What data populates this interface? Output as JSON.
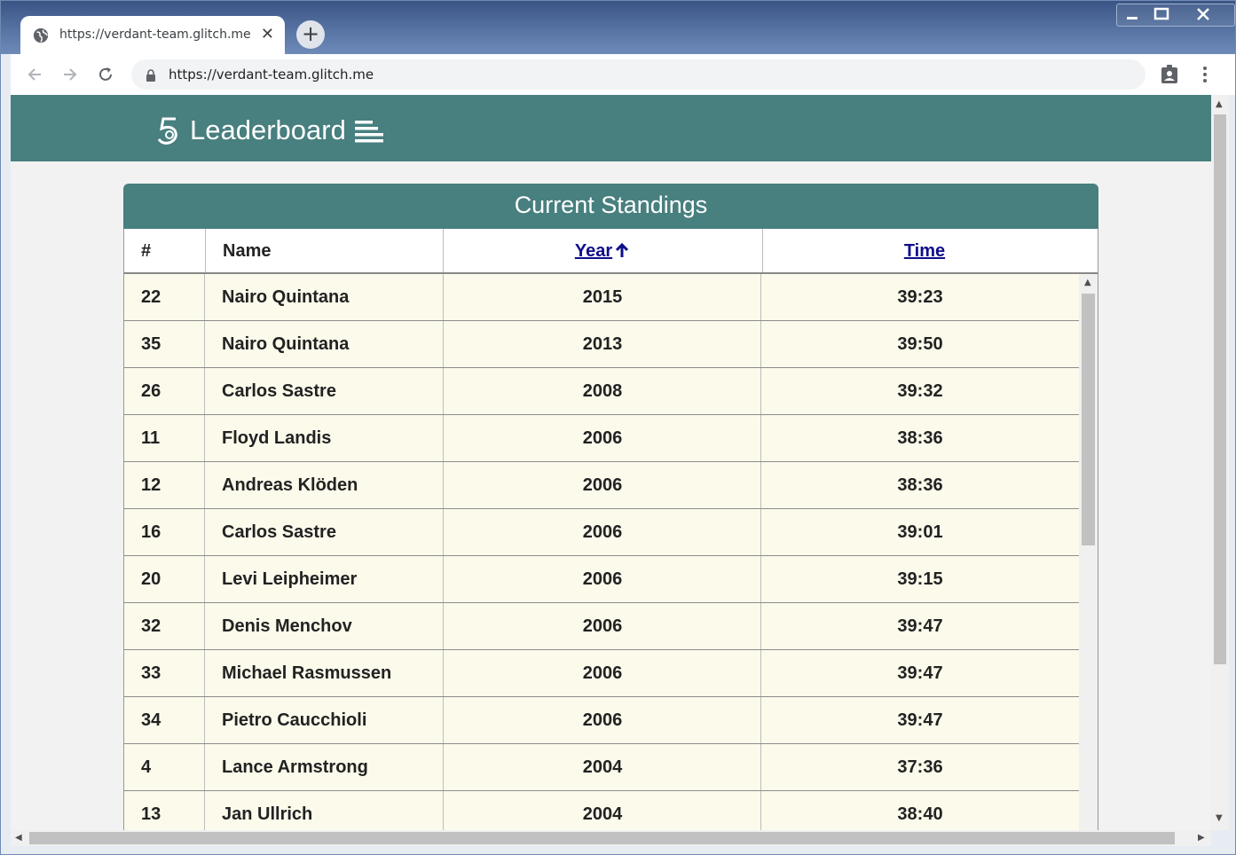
{
  "browser": {
    "tab_title": "https://verdant-team.glitch.me",
    "tab_close": "✕",
    "new_tab": "+",
    "url": "https://verdant-team.glitch.me"
  },
  "header": {
    "title": "Leaderboard"
  },
  "table": {
    "title": "Current Standings",
    "columns": {
      "rank": "#",
      "name": "Name",
      "year": "Year",
      "time": "Time"
    },
    "sort": {
      "column": "year",
      "direction": "up"
    },
    "rows": [
      {
        "rank": "22",
        "name": "Nairo Quintana",
        "year": "2015",
        "time": "39:23"
      },
      {
        "rank": "35",
        "name": "Nairo Quintana",
        "year": "2013",
        "time": "39:50"
      },
      {
        "rank": "26",
        "name": "Carlos Sastre",
        "year": "2008",
        "time": "39:32"
      },
      {
        "rank": "11",
        "name": "Floyd Landis",
        "year": "2006",
        "time": "38:36"
      },
      {
        "rank": "12",
        "name": "Andreas Klöden",
        "year": "2006",
        "time": "38:36"
      },
      {
        "rank": "16",
        "name": "Carlos Sastre",
        "year": "2006",
        "time": "39:01"
      },
      {
        "rank": "20",
        "name": "Levi Leipheimer",
        "year": "2006",
        "time": "39:15"
      },
      {
        "rank": "32",
        "name": "Denis Menchov",
        "year": "2006",
        "time": "39:47"
      },
      {
        "rank": "33",
        "name": "Michael Rasmussen",
        "year": "2006",
        "time": "39:47"
      },
      {
        "rank": "34",
        "name": "Pietro Caucchioli",
        "year": "2006",
        "time": "39:47"
      },
      {
        "rank": "4",
        "name": "Lance Armstrong",
        "year": "2004",
        "time": "37:36"
      },
      {
        "rank": "13",
        "name": "Jan Ullrich",
        "year": "2004",
        "time": "38:40"
      }
    ]
  },
  "colors": {
    "header_bg": "#487f7f",
    "row_bg": "#fcfaeb",
    "sort_link": "#0f0d8a"
  }
}
